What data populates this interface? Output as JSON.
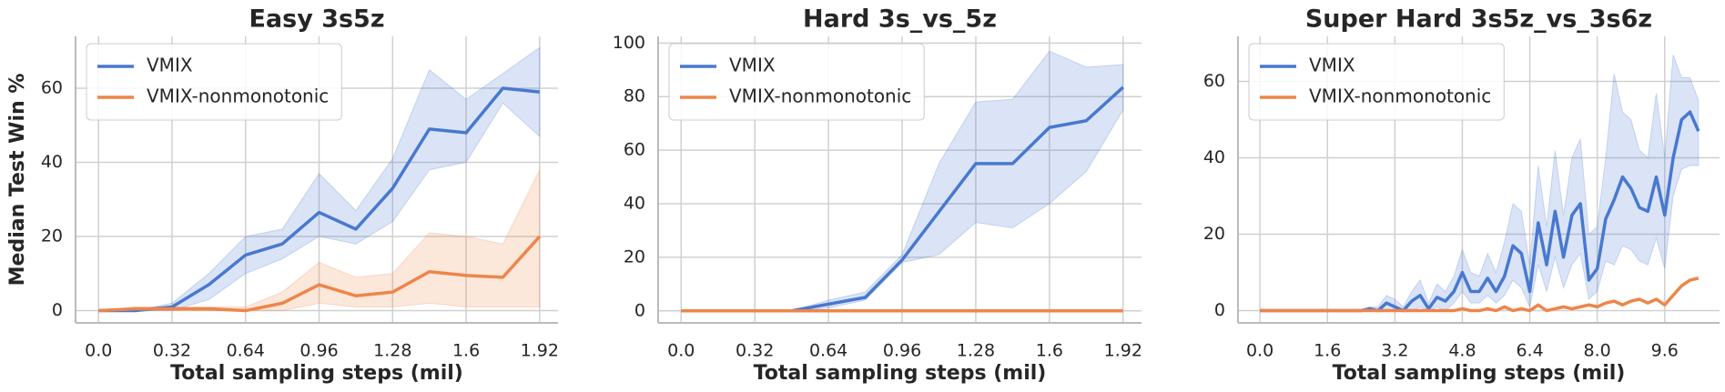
{
  "chart_data": [
    {
      "type": "line",
      "title": "Easy 3s5z",
      "x_label": "Total sampling steps (mil)",
      "y_label": "Median Test Win %",
      "x": [
        0,
        0.16,
        0.32,
        0.48,
        0.64,
        0.8,
        0.96,
        1.12,
        1.28,
        1.44,
        1.6,
        1.76,
        1.92
      ],
      "xlim": [
        -0.1,
        2.0
      ],
      "xticks": [
        {
          "value": 0,
          "label": "0.0"
        },
        0.32,
        0.64,
        0.96,
        1.28,
        1.6,
        1.92
      ],
      "ylim": [
        -3.3,
        74
      ],
      "yticks": [
        0,
        20,
        40,
        60
      ],
      "grid": true,
      "legend": "upper left",
      "series": [
        {
          "name": "VMIX",
          "color": "#4878d0",
          "values": [
            0,
            0,
            1,
            7,
            15,
            18,
            26.5,
            22,
            33,
            49,
            48,
            60,
            59
          ],
          "lower": [
            0,
            0,
            0,
            3,
            10,
            14,
            20,
            18,
            24,
            38,
            40,
            56,
            47
          ],
          "upper": [
            0,
            0,
            2,
            10,
            20,
            22,
            37,
            27,
            41,
            65,
            57,
            64,
            71
          ]
        },
        {
          "name": "VMIX-nonmonotonic",
          "color": "#ee854a",
          "values": [
            0,
            0.5,
            0.5,
            0.5,
            0,
            2,
            7,
            4,
            5,
            10.5,
            9.5,
            9,
            20
          ],
          "lower": [
            0,
            0,
            0,
            0,
            0,
            0,
            2,
            1,
            1,
            2,
            1,
            1,
            1
          ],
          "upper": [
            0,
            1,
            1,
            1,
            1,
            5,
            13,
            9,
            10,
            21,
            20,
            18,
            38
          ]
        }
      ]
    },
    {
      "type": "line",
      "title": "Hard 3s_vs_5z",
      "x_label": "Total sampling steps (mil)",
      "x": [
        0,
        0.16,
        0.32,
        0.48,
        0.64,
        0.8,
        0.96,
        1.12,
        1.28,
        1.44,
        1.6,
        1.76,
        1.92
      ],
      "xlim": [
        -0.1,
        2.0
      ],
      "xticks": [
        {
          "value": 0,
          "label": "0.0"
        },
        0.32,
        0.64,
        0.96,
        1.28,
        1.6,
        1.92
      ],
      "ylim": [
        -4.5,
        102.5
      ],
      "yticks": [
        0,
        20,
        40,
        60,
        80,
        100
      ],
      "grid": true,
      "legend": "upper left",
      "series": [
        {
          "name": "VMIX",
          "color": "#4878d0",
          "values": [
            0,
            0,
            0,
            0,
            2.5,
            5,
            19,
            37,
            55,
            55,
            68.5,
            71,
            83.5
          ],
          "lower": [
            0,
            0,
            0,
            0,
            1,
            4,
            18,
            21,
            33,
            31,
            40,
            52,
            75
          ],
          "upper": [
            0,
            0,
            0,
            0,
            4,
            7,
            21,
            55,
            78,
            79,
            97,
            91,
            92
          ]
        },
        {
          "name": "VMIX-nonmonotonic",
          "color": "#ee854a",
          "values": [
            0,
            0,
            0,
            0,
            0,
            0,
            0,
            0,
            0,
            0,
            0,
            0,
            0
          ]
        }
      ]
    },
    {
      "type": "line",
      "title": "Super Hard 3s5z_vs_3s6z",
      "x_label": "Total sampling steps (mil)",
      "x": [
        0,
        0.2,
        0.4,
        0.6,
        0.8,
        1.0,
        1.2,
        1.4,
        1.6,
        1.8,
        2.0,
        2.2,
        2.4,
        2.6,
        2.8,
        3.0,
        3.2,
        3.4,
        3.6,
        3.8,
        4.0,
        4.2,
        4.4,
        4.6,
        4.8,
        5.0,
        5.2,
        5.4,
        5.6,
        5.8,
        6.0,
        6.2,
        6.4,
        6.6,
        6.8,
        7.0,
        7.2,
        7.4,
        7.6,
        7.8,
        8.0,
        8.2,
        8.4,
        8.6,
        8.8,
        9.0,
        9.2,
        9.4,
        9.6,
        9.8,
        10.0,
        10.2,
        10.4
      ],
      "xlim": [
        -0.52,
        10.9
      ],
      "xticks": [
        {
          "value": 0,
          "label": "0.0"
        },
        1.6,
        3.2,
        4.8,
        6.4,
        {
          "value": 8,
          "label": "8.0"
        },
        9.6
      ],
      "ylim": [
        -3.2,
        71.8
      ],
      "yticks": [
        0,
        20,
        40,
        60
      ],
      "grid": true,
      "legend": "upper left",
      "series": [
        {
          "name": "VMIX",
          "color": "#4878d0",
          "values": [
            0,
            0,
            0,
            0,
            0,
            0,
            0,
            0,
            0,
            0,
            0,
            0,
            0,
            0.5,
            0,
            2,
            1,
            0,
            2.5,
            4,
            0.5,
            3.5,
            2.5,
            5,
            10,
            5,
            5,
            8.5,
            5,
            9,
            17,
            15,
            5,
            23,
            12,
            26,
            14,
            25,
            28,
            8,
            11,
            24,
            29,
            35,
            32,
            27,
            26,
            35,
            25,
            40,
            50,
            52,
            47
          ],
          "lower": [
            0,
            0,
            0,
            0,
            0,
            0,
            0,
            0,
            0,
            0,
            0,
            0,
            0,
            0,
            0,
            0,
            0,
            0,
            0,
            1,
            0,
            1,
            0,
            2,
            5,
            2,
            2,
            4,
            2,
            4,
            8,
            6,
            1,
            12,
            5,
            14,
            6,
            12,
            15,
            3,
            5,
            13,
            12,
            17,
            16,
            13,
            12,
            19,
            11,
            30,
            37,
            38,
            38
          ],
          "upper": [
            0,
            0,
            0,
            0,
            0,
            0,
            0,
            0,
            0,
            0,
            0,
            0,
            0,
            1,
            1,
            4,
            3,
            1,
            5,
            8,
            2,
            7,
            5,
            9,
            16,
            10,
            9,
            15,
            10,
            18,
            28,
            26,
            12,
            38,
            22,
            42,
            25,
            40,
            45,
            20,
            22,
            40,
            62,
            52,
            50,
            42,
            40,
            57,
            40,
            67,
            61,
            61,
            55
          ]
        },
        {
          "name": "VMIX-nonmonotonic",
          "color": "#ee854a",
          "values": [
            0,
            0,
            0,
            0,
            0,
            0,
            0,
            0,
            0,
            0,
            0,
            0,
            0,
            0,
            0,
            0,
            0,
            0,
            0,
            0,
            0,
            0,
            0,
            0,
            0.5,
            0,
            0,
            0.5,
            0,
            1,
            0,
            0.5,
            0,
            1.5,
            0,
            0.5,
            1,
            0.5,
            1,
            1.5,
            1,
            2,
            2.5,
            1.5,
            2.5,
            3,
            2,
            3,
            1.5,
            4,
            6.5,
            8,
            8.5
          ]
        }
      ]
    }
  ]
}
